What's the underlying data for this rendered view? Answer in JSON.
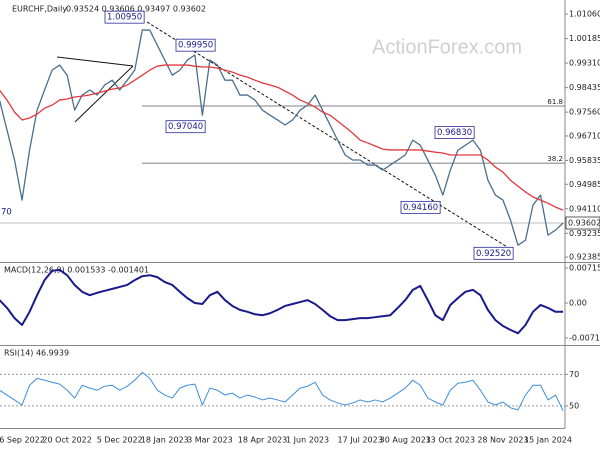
{
  "chart_data": [
    {
      "type": "line",
      "title": "EURCHF,Daily",
      "subtitle": "0.93524 0.93606 0.93497 0.93602",
      "watermark": "ActionForex.com",
      "categories": [
        null,
        null,
        null,
        "6 Sep 2022",
        null,
        null,
        null,
        null,
        null,
        "20 Oct 2022",
        null,
        null,
        null,
        null,
        null,
        null,
        "5 Dec 2022",
        null,
        null,
        null,
        null,
        null,
        "18 Jan 2023",
        null,
        null,
        null,
        null,
        null,
        "3 Mar 2023",
        null,
        null,
        null,
        null,
        null,
        null,
        "18 Apr 2023",
        null,
        null,
        null,
        null,
        null,
        "1 Jun 2023",
        null,
        null,
        null,
        null,
        null,
        null,
        "17 Jul 2023",
        null,
        null,
        null,
        null,
        null,
        "30 Aug 2023",
        null,
        null,
        null,
        null,
        null,
        "13 Oct 2023",
        null,
        null,
        null,
        null,
        null,
        null,
        "28 Nov 2023",
        null,
        null,
        null,
        null,
        null,
        "15 Jan 2024",
        null,
        null
      ],
      "series": [
        {
          "color": "#4d6f8c",
          "values": [
            0.9799,
            0.9692,
            0.9585,
            0.9442,
            0.962,
            0.9763,
            0.9835,
            0.9906,
            0.9924,
            0.9888,
            0.9763,
            0.9817,
            0.9835,
            0.9817,
            0.9853,
            0.987,
            0.9835,
            0.987,
            0.9906,
            1.0049,
            1.0049,
            0.9995,
            0.9942,
            0.9888,
            0.9906,
            0.9942,
            0.996,
            0.9745,
            0.9942,
            0.9924,
            0.987,
            0.987,
            0.9817,
            0.9817,
            0.9799,
            0.9763,
            0.9745,
            0.9728,
            0.971,
            0.9728,
            0.9763,
            0.9781,
            0.9817,
            0.9763,
            0.971,
            0.9656,
            0.9603,
            0.9585,
            0.9585,
            0.9567,
            0.9567,
            0.9549,
            0.9567,
            0.9585,
            0.9603,
            0.9656,
            0.9638,
            0.9585,
            0.9531,
            0.946,
            0.9549,
            0.962,
            0.9638,
            0.9656,
            0.962,
            0.9513,
            0.946,
            0.9442,
            0.9371,
            0.9281,
            0.9299,
            0.9424,
            0.946,
            0.9317,
            0.9335,
            0.93602
          ]
        },
        {
          "color": "#e0393e",
          "values": [
            0.9835,
            0.9799,
            0.9756,
            0.9728,
            0.9735,
            0.9749,
            0.977,
            0.9781,
            0.9799,
            0.9803,
            0.981,
            0.9813,
            0.9817,
            0.9824,
            0.9831,
            0.9838,
            0.9842,
            0.9853,
            0.987,
            0.9888,
            0.9906,
            0.992,
            0.9924,
            0.9924,
            0.9924,
            0.9924,
            0.992,
            0.9917,
            0.9917,
            0.9913,
            0.9906,
            0.9899,
            0.9888,
            0.9881,
            0.987,
            0.986,
            0.9853,
            0.9845,
            0.9831,
            0.9817,
            0.9799,
            0.9788,
            0.9774,
            0.9756,
            0.9745,
            0.9724,
            0.9703,
            0.9681,
            0.9656,
            0.9646,
            0.9635,
            0.9624,
            0.9621,
            0.9621,
            0.9621,
            0.9621,
            0.9621,
            0.9617,
            0.9613,
            0.961,
            0.9603,
            0.9603,
            0.9603,
            0.9603,
            0.9603,
            0.9585,
            0.956,
            0.9542,
            0.9513,
            0.9492,
            0.9471,
            0.9453,
            0.9442,
            0.9431,
            0.9417,
            0.9406
          ]
        }
      ],
      "ylim": [
        0.9221,
        1.0142
      ],
      "yticks": [
        {
          "value": 1.0106,
          "label": "1.01060"
        },
        {
          "value": 1.00185,
          "label": "1.00185"
        },
        {
          "value": 0.9931,
          "label": "0.99310"
        },
        {
          "value": 0.98435,
          "label": "0.98435"
        },
        {
          "value": 0.9756,
          "label": "0.97560"
        },
        {
          "value": 0.9671,
          "label": "0.96710"
        },
        {
          "value": 0.95835,
          "label": "0.95835"
        },
        {
          "value": 0.94985,
          "label": "0.94985"
        },
        {
          "value": 0.9411,
          "label": "0.94110"
        },
        {
          "value": 0.93235,
          "label": "0.93235"
        },
        {
          "value": 0.92385,
          "label": "0.92385"
        }
      ],
      "last_price": 0.93602,
      "annotations": [
        {
          "value": 1.0095,
          "label": "1.00950"
        },
        {
          "value": 0.9995,
          "label": "0.99950"
        },
        {
          "value": 0.9704,
          "label": "0.97040"
        },
        {
          "value": 0.9683,
          "label": "0.96830"
        },
        {
          "value": 0.9416,
          "label": "0.94160"
        },
        {
          "value": 0.9252,
          "label": "0.92520"
        }
      ],
      "edge_label": "70",
      "levels": [
        {
          "value": 0.9778,
          "label": "61.8"
        },
        {
          "value": 0.9574,
          "label": "38.2"
        }
      ]
    },
    {
      "type": "line",
      "title": "MACD(12,26,9) 0.001533 -0.001401",
      "series": [
        {
          "color": "#1a1a8c",
          "values": [
            0.0006,
            -0.001,
            -0.0031,
            -0.0045,
            -0.0018,
            0.0016,
            0.0047,
            0.0066,
            0.0068,
            0.0057,
            0.0037,
            0.0023,
            0.0016,
            0.0021,
            0.0025,
            0.0029,
            0.0033,
            0.0037,
            0.0047,
            0.0055,
            0.0057,
            0.0053,
            0.0043,
            0.0037,
            0.0023,
            0.001,
            0,
            -0.0002,
            0.0016,
            0.0023,
            0.0006,
            -0.0006,
            -0.0014,
            -0.0018,
            -0.0023,
            -0.0025,
            -0.0021,
            -0.0014,
            -0.0006,
            -0.0002,
            0.0002,
            0.0006,
            -0.0002,
            -0.0014,
            -0.0027,
            -0.0035,
            -0.0035,
            -0.0033,
            -0.0031,
            -0.0031,
            -0.0029,
            -0.0027,
            -0.0025,
            -0.001,
            0.0006,
            0.0027,
            0.0035,
            0.0006,
            -0.0025,
            -0.0035,
            -0.0004,
            0.001,
            0.0023,
            0.0027,
            0.0016,
            -0.0014,
            -0.0035,
            -0.0047,
            -0.0055,
            -0.0062,
            -0.0045,
            -0.0018,
            -0.0004,
            -0.001,
            -0.0018,
            -0.0018
          ]
        }
      ],
      "ylim": [
        -0.0086,
        0.0082
      ],
      "yticks": [
        0.007159,
        {
          "value": 0,
          "label": "0.00"
        },
        -0.007173
      ]
    },
    {
      "type": "line",
      "title": "RSI(14) 46.9939",
      "series": [
        {
          "color": "#3d8fdc",
          "values": [
            60,
            56.9,
            53.8,
            50.6,
            63.1,
            67.5,
            66.3,
            65,
            63.8,
            60,
            55,
            63.1,
            61.3,
            60,
            62.5,
            63.1,
            60,
            62.5,
            66.3,
            71.3,
            67.5,
            60,
            56.9,
            55,
            61.3,
            63.1,
            63.8,
            50.6,
            61.3,
            60,
            56.9,
            58.1,
            55,
            56.9,
            55.6,
            53.8,
            55,
            53.8,
            52.5,
            56.9,
            61.3,
            62.5,
            65,
            56.9,
            53.8,
            51.9,
            50.6,
            51.9,
            53.8,
            52.5,
            53.8,
            52.5,
            55,
            58.1,
            61.3,
            66.3,
            63.1,
            55,
            52.5,
            50.6,
            60,
            64.4,
            65,
            66.3,
            60,
            52.5,
            50.6,
            52.5,
            48.8,
            47.5,
            56.9,
            63.1,
            63.1,
            53.8,
            56.9,
            47
          ]
        }
      ],
      "ylim": [
        36,
        88
      ],
      "yticks": [
        70,
        50
      ],
      "grid": true
    }
  ]
}
